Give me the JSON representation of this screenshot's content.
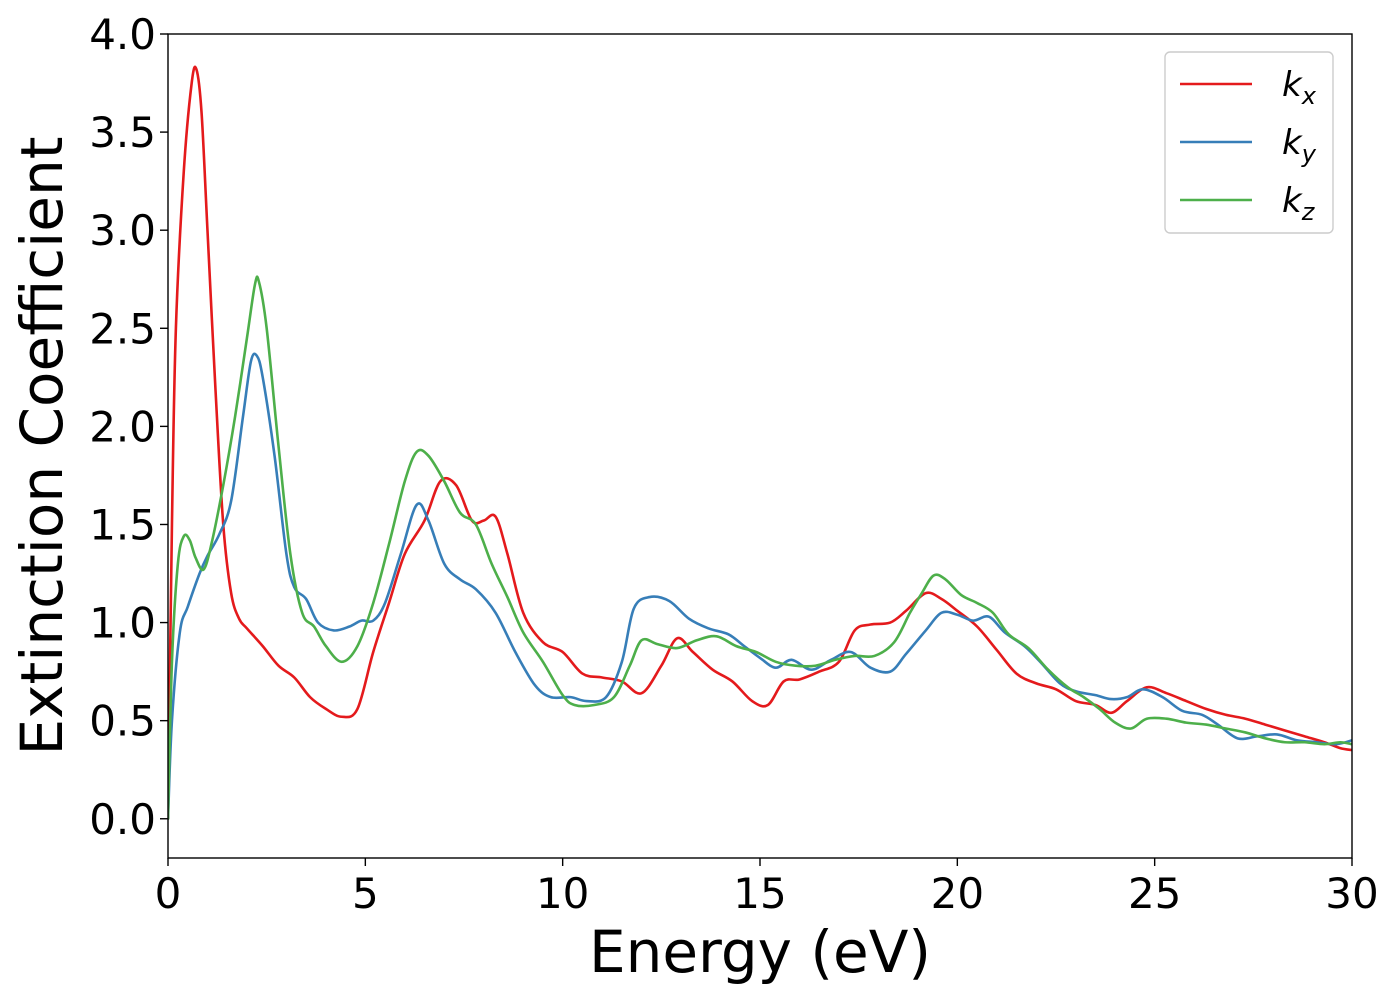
{
  "chart_data": {
    "type": "line",
    "title": "",
    "xlabel": "Energy (eV)",
    "ylabel": "Extinction Coefficient",
    "xlim": [
      0,
      30
    ],
    "ylim": [
      -0.2,
      4.0
    ],
    "x_ticks": [
      "0",
      "5",
      "10",
      "15",
      "20",
      "25",
      "30"
    ],
    "y_ticks": [
      "0.0",
      "0.5",
      "1.0",
      "1.5",
      "2.0",
      "2.5",
      "3.0",
      "3.5",
      "4.0"
    ],
    "grid": false,
    "legend_position": "top-right",
    "series": [
      {
        "name": "k_x",
        "base": "k",
        "sub": "x",
        "color": "#e41a1c",
        "points": [
          [
            0,
            0.0
          ],
          [
            0.1,
            1.5
          ],
          [
            0.2,
            2.5
          ],
          [
            0.4,
            3.3
          ],
          [
            0.6,
            3.75
          ],
          [
            0.72,
            3.82
          ],
          [
            0.85,
            3.6
          ],
          [
            1.0,
            3.0
          ],
          [
            1.2,
            2.2
          ],
          [
            1.4,
            1.5
          ],
          [
            1.6,
            1.15
          ],
          [
            1.8,
            1.02
          ],
          [
            2.0,
            0.97
          ],
          [
            2.4,
            0.88
          ],
          [
            2.8,
            0.78
          ],
          [
            3.2,
            0.72
          ],
          [
            3.6,
            0.62
          ],
          [
            4.0,
            0.56
          ],
          [
            4.4,
            0.52
          ],
          [
            4.8,
            0.56
          ],
          [
            5.2,
            0.85
          ],
          [
            5.6,
            1.1
          ],
          [
            6.0,
            1.35
          ],
          [
            6.5,
            1.52
          ],
          [
            6.9,
            1.72
          ],
          [
            7.3,
            1.7
          ],
          [
            7.7,
            1.52
          ],
          [
            8.0,
            1.52
          ],
          [
            8.3,
            1.54
          ],
          [
            8.6,
            1.35
          ],
          [
            9.0,
            1.05
          ],
          [
            9.5,
            0.9
          ],
          [
            10.0,
            0.85
          ],
          [
            10.5,
            0.74
          ],
          [
            11.0,
            0.72
          ],
          [
            11.5,
            0.7
          ],
          [
            12.0,
            0.64
          ],
          [
            12.5,
            0.78
          ],
          [
            12.9,
            0.92
          ],
          [
            13.3,
            0.85
          ],
          [
            13.8,
            0.76
          ],
          [
            14.3,
            0.7
          ],
          [
            14.8,
            0.6
          ],
          [
            15.2,
            0.58
          ],
          [
            15.6,
            0.7
          ],
          [
            16.0,
            0.71
          ],
          [
            16.5,
            0.75
          ],
          [
            17.0,
            0.8
          ],
          [
            17.4,
            0.96
          ],
          [
            17.8,
            0.99
          ],
          [
            18.3,
            1.0
          ],
          [
            18.7,
            1.06
          ],
          [
            19.2,
            1.15
          ],
          [
            19.6,
            1.12
          ],
          [
            20.0,
            1.06
          ],
          [
            20.5,
            0.98
          ],
          [
            21.0,
            0.86
          ],
          [
            21.5,
            0.74
          ],
          [
            22.0,
            0.69
          ],
          [
            22.5,
            0.66
          ],
          [
            23.0,
            0.6
          ],
          [
            23.5,
            0.58
          ],
          [
            23.9,
            0.54
          ],
          [
            24.3,
            0.6
          ],
          [
            24.8,
            0.67
          ],
          [
            25.3,
            0.64
          ],
          [
            25.8,
            0.6
          ],
          [
            26.3,
            0.56
          ],
          [
            26.8,
            0.53
          ],
          [
            27.3,
            0.51
          ],
          [
            27.8,
            0.48
          ],
          [
            28.3,
            0.45
          ],
          [
            28.8,
            0.42
          ],
          [
            29.3,
            0.39
          ],
          [
            29.7,
            0.36
          ],
          [
            30.0,
            0.35
          ]
        ]
      },
      {
        "name": "k_y",
        "base": "k",
        "sub": "y",
        "color": "#377eb8",
        "points": [
          [
            0,
            0.0
          ],
          [
            0.1,
            0.5
          ],
          [
            0.3,
            0.95
          ],
          [
            0.5,
            1.08
          ],
          [
            0.8,
            1.25
          ],
          [
            1.0,
            1.34
          ],
          [
            1.3,
            1.45
          ],
          [
            1.6,
            1.62
          ],
          [
            1.9,
            2.05
          ],
          [
            2.1,
            2.33
          ],
          [
            2.25,
            2.36
          ],
          [
            2.4,
            2.25
          ],
          [
            2.7,
            1.85
          ],
          [
            3.0,
            1.35
          ],
          [
            3.2,
            1.18
          ],
          [
            3.5,
            1.12
          ],
          [
            3.8,
            1.0
          ],
          [
            4.2,
            0.96
          ],
          [
            4.6,
            0.98
          ],
          [
            4.9,
            1.01
          ],
          [
            5.2,
            1.01
          ],
          [
            5.5,
            1.1
          ],
          [
            5.9,
            1.35
          ],
          [
            6.3,
            1.6
          ],
          [
            6.6,
            1.52
          ],
          [
            7.0,
            1.3
          ],
          [
            7.4,
            1.22
          ],
          [
            7.8,
            1.17
          ],
          [
            8.3,
            1.05
          ],
          [
            8.8,
            0.85
          ],
          [
            9.3,
            0.68
          ],
          [
            9.7,
            0.62
          ],
          [
            10.2,
            0.62
          ],
          [
            10.6,
            0.6
          ],
          [
            11.1,
            0.62
          ],
          [
            11.5,
            0.8
          ],
          [
            11.8,
            1.07
          ],
          [
            12.2,
            1.13
          ],
          [
            12.7,
            1.11
          ],
          [
            13.2,
            1.02
          ],
          [
            13.7,
            0.97
          ],
          [
            14.2,
            0.94
          ],
          [
            14.6,
            0.88
          ],
          [
            15.0,
            0.82
          ],
          [
            15.4,
            0.77
          ],
          [
            15.8,
            0.81
          ],
          [
            16.3,
            0.76
          ],
          [
            16.8,
            0.81
          ],
          [
            17.3,
            0.85
          ],
          [
            17.8,
            0.77
          ],
          [
            18.3,
            0.75
          ],
          [
            18.7,
            0.84
          ],
          [
            19.2,
            0.96
          ],
          [
            19.6,
            1.05
          ],
          [
            20.0,
            1.04
          ],
          [
            20.4,
            1.01
          ],
          [
            20.8,
            1.03
          ],
          [
            21.2,
            0.95
          ],
          [
            21.7,
            0.88
          ],
          [
            22.1,
            0.8
          ],
          [
            22.6,
            0.69
          ],
          [
            23.0,
            0.65
          ],
          [
            23.5,
            0.63
          ],
          [
            23.9,
            0.61
          ],
          [
            24.3,
            0.62
          ],
          [
            24.7,
            0.66
          ],
          [
            25.2,
            0.62
          ],
          [
            25.7,
            0.55
          ],
          [
            26.2,
            0.53
          ],
          [
            26.6,
            0.48
          ],
          [
            27.1,
            0.41
          ],
          [
            27.6,
            0.42
          ],
          [
            28.1,
            0.43
          ],
          [
            28.6,
            0.4
          ],
          [
            29.1,
            0.39
          ],
          [
            29.6,
            0.38
          ],
          [
            30.0,
            0.4
          ]
        ]
      },
      {
        "name": "k_z",
        "base": "k",
        "sub": "z",
        "color": "#4daf4a",
        "points": [
          [
            0,
            0.0
          ],
          [
            0.1,
            0.8
          ],
          [
            0.25,
            1.3
          ],
          [
            0.4,
            1.44
          ],
          [
            0.55,
            1.42
          ],
          [
            0.7,
            1.33
          ],
          [
            0.9,
            1.27
          ],
          [
            1.1,
            1.4
          ],
          [
            1.4,
            1.7
          ],
          [
            1.7,
            2.05
          ],
          [
            2.0,
            2.45
          ],
          [
            2.2,
            2.72
          ],
          [
            2.3,
            2.74
          ],
          [
            2.5,
            2.5
          ],
          [
            2.8,
            1.9
          ],
          [
            3.1,
            1.35
          ],
          [
            3.4,
            1.05
          ],
          [
            3.7,
            0.98
          ],
          [
            4.0,
            0.88
          ],
          [
            4.4,
            0.8
          ],
          [
            4.8,
            0.88
          ],
          [
            5.2,
            1.1
          ],
          [
            5.6,
            1.4
          ],
          [
            6.0,
            1.72
          ],
          [
            6.3,
            1.87
          ],
          [
            6.6,
            1.85
          ],
          [
            7.0,
            1.72
          ],
          [
            7.4,
            1.56
          ],
          [
            7.8,
            1.5
          ],
          [
            8.2,
            1.3
          ],
          [
            8.6,
            1.13
          ],
          [
            9.0,
            0.95
          ],
          [
            9.5,
            0.8
          ],
          [
            10.0,
            0.63
          ],
          [
            10.3,
            0.58
          ],
          [
            10.8,
            0.58
          ],
          [
            11.3,
            0.62
          ],
          [
            11.7,
            0.78
          ],
          [
            12.0,
            0.91
          ],
          [
            12.4,
            0.89
          ],
          [
            12.9,
            0.87
          ],
          [
            13.4,
            0.91
          ],
          [
            13.9,
            0.93
          ],
          [
            14.4,
            0.88
          ],
          [
            14.9,
            0.85
          ],
          [
            15.4,
            0.8
          ],
          [
            15.9,
            0.78
          ],
          [
            16.4,
            0.78
          ],
          [
            16.9,
            0.81
          ],
          [
            17.4,
            0.83
          ],
          [
            17.9,
            0.83
          ],
          [
            18.4,
            0.9
          ],
          [
            18.8,
            1.05
          ],
          [
            19.1,
            1.15
          ],
          [
            19.4,
            1.24
          ],
          [
            19.7,
            1.22
          ],
          [
            20.1,
            1.14
          ],
          [
            20.5,
            1.1
          ],
          [
            20.9,
            1.05
          ],
          [
            21.3,
            0.94
          ],
          [
            21.8,
            0.87
          ],
          [
            22.3,
            0.76
          ],
          [
            22.8,
            0.67
          ],
          [
            23.2,
            0.62
          ],
          [
            23.6,
            0.56
          ],
          [
            24.0,
            0.49
          ],
          [
            24.4,
            0.46
          ],
          [
            24.8,
            0.51
          ],
          [
            25.3,
            0.51
          ],
          [
            25.8,
            0.49
          ],
          [
            26.3,
            0.48
          ],
          [
            26.8,
            0.46
          ],
          [
            27.3,
            0.44
          ],
          [
            27.8,
            0.41
          ],
          [
            28.3,
            0.39
          ],
          [
            28.8,
            0.39
          ],
          [
            29.3,
            0.38
          ],
          [
            29.7,
            0.39
          ],
          [
            30.0,
            0.38
          ]
        ]
      }
    ]
  }
}
